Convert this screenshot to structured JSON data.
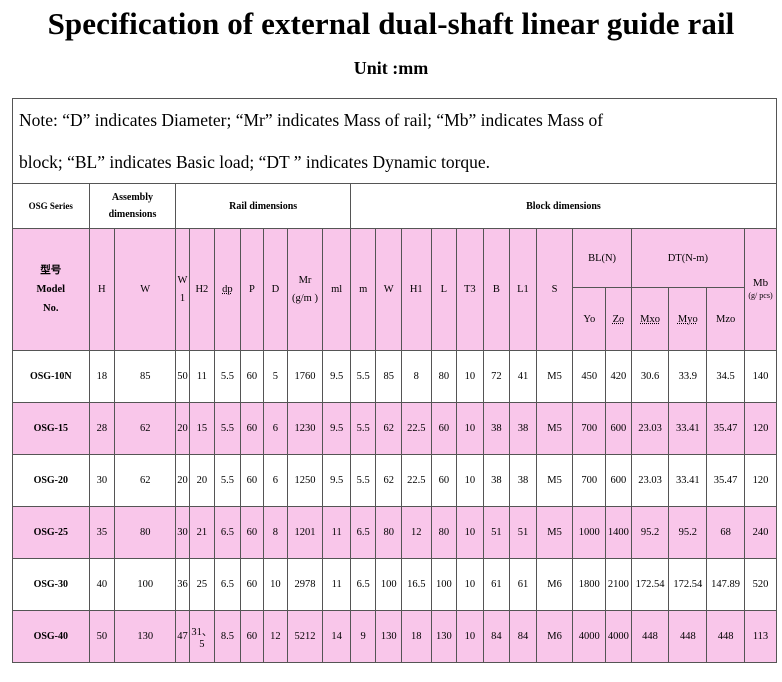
{
  "title": "Specification of external dual-shaft linear guide rail",
  "unit": "Unit :mm",
  "note_line1": "Note: “D” indicates Diameter; “Mr” indicates Mass of rail; “Mb” indicates Mass of",
  "note_line2": "block; “BL” indicates Basic load; “DT ” indicates Dynamic torque.",
  "groups": {
    "series": "OSG Series",
    "assembly": "Assembly dimensions",
    "rail": "Rail dimensions",
    "block": "Block dimensions"
  },
  "columns": {
    "model_cn": "型号",
    "model_en": "Model",
    "model_no": "No.",
    "H": "H",
    "W": "W",
    "W1": "W 1",
    "H2": "H2",
    "dp": "dp",
    "P": "P",
    "D": "D",
    "Mr": "Mr (g/m )",
    "ml": "ml",
    "m": "m",
    "W_b": "W",
    "H1": "H1",
    "L": "L",
    "T3": "T3",
    "B": "B",
    "L1": "L1",
    "S": "S",
    "BL": "BL(N)",
    "DT": "DT(N-m)",
    "Yo": "Yo",
    "Zo": "Zo",
    "Mxo": "Mxo",
    "Myo": "Myo",
    "Mzo": "Mzo",
    "Mb": "Mb",
    "Mb_unit": "(g/ pcs)"
  },
  "rows": [
    [
      "OSG-10N",
      "18",
      "85",
      "50",
      "11",
      "5.5",
      "60",
      "5",
      "1760",
      "9.5",
      "5.5",
      "85",
      "8",
      "80",
      "10",
      "72",
      "41",
      "M5",
      "450",
      "420",
      "30.6",
      "33.9",
      "34.5",
      "140"
    ],
    [
      "OSG-15",
      "28",
      "62",
      "20",
      "15",
      "5.5",
      "60",
      "6",
      "1230",
      "9.5",
      "5.5",
      "62",
      "22.5",
      "60",
      "10",
      "38",
      "38",
      "M5",
      "700",
      "600",
      "23.03",
      "33.41",
      "35.47",
      "120"
    ],
    [
      "OSG-20",
      "30",
      "62",
      "20",
      "20",
      "5.5",
      "60",
      "6",
      "1250",
      "9.5",
      "5.5",
      "62",
      "22.5",
      "60",
      "10",
      "38",
      "38",
      "M5",
      "700",
      "600",
      "23.03",
      "33.41",
      "35.47",
      "120"
    ],
    [
      "OSG-25",
      "35",
      "80",
      "30",
      "21",
      "6.5",
      "60",
      "8",
      "1201",
      "11",
      "6.5",
      "80",
      "12",
      "80",
      "10",
      "51",
      "51",
      "M5",
      "1000",
      "1400",
      "95.2",
      "95.2",
      "68",
      "240"
    ],
    [
      "OSG-30",
      "40",
      "100",
      "36",
      "25",
      "6.5",
      "60",
      "10",
      "2978",
      "11",
      "6.5",
      "100",
      "16.5",
      "100",
      "10",
      "61",
      "61",
      "M6",
      "1800",
      "2100",
      "172.54",
      "172.54",
      "147.89",
      "520"
    ],
    [
      "OSG-40",
      "50",
      "130",
      "47",
      "31、5",
      "8.5",
      "60",
      "12",
      "5212",
      "14",
      "9",
      "130",
      "18",
      "130",
      "10",
      "84",
      "84",
      "M6",
      "4000",
      "4000",
      "448",
      "448",
      "448",
      "113"
    ]
  ],
  "colors": {
    "pink": "#f9c6ea",
    "border": "#555555"
  }
}
